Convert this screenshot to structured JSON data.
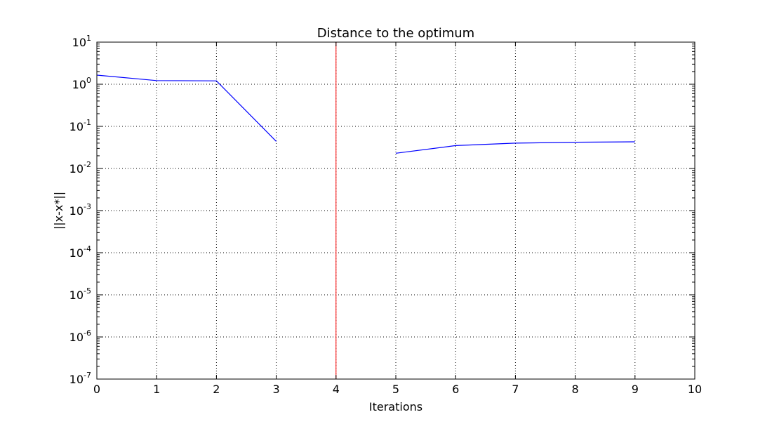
{
  "chart_data": {
    "type": "line",
    "title": "Distance to the optimum",
    "xlabel": "Iterations",
    "ylabel": "||x-x*||",
    "yscale": "log",
    "xlim": [
      0,
      10
    ],
    "ylim": [
      1e-07,
      10
    ],
    "grid": true,
    "x_ticks": [
      "0",
      "1",
      "2",
      "3",
      "4",
      "5",
      "6",
      "7",
      "8",
      "9",
      "10"
    ],
    "y_ticks": [
      {
        "base": "10",
        "exp": "-7",
        "value": 1e-07
      },
      {
        "base": "10",
        "exp": "-6",
        "value": 1e-06
      },
      {
        "base": "10",
        "exp": "-5",
        "value": 1e-05
      },
      {
        "base": "10",
        "exp": "-4",
        "value": 0.0001
      },
      {
        "base": "10",
        "exp": "-3",
        "value": 0.001
      },
      {
        "base": "10",
        "exp": "-2",
        "value": 0.01
      },
      {
        "base": "10",
        "exp": "-1",
        "value": 0.1
      },
      {
        "base": "10",
        "exp": "0",
        "value": 1
      },
      {
        "base": "10",
        "exp": "1",
        "value": 10
      }
    ],
    "series": [
      {
        "color": "#0000ff",
        "segments": [
          {
            "x": [
              0,
              1,
              2,
              3
            ],
            "y": [
              1.65,
              1.22,
              1.2,
              0.044
            ]
          },
          {
            "x": [
              5,
              6,
              7,
              8,
              9
            ],
            "y": [
              0.023,
              0.035,
              0.04,
              0.042,
              0.043
            ]
          }
        ]
      }
    ],
    "vlines": [
      {
        "x": 4,
        "color": "#ff0000"
      }
    ]
  }
}
